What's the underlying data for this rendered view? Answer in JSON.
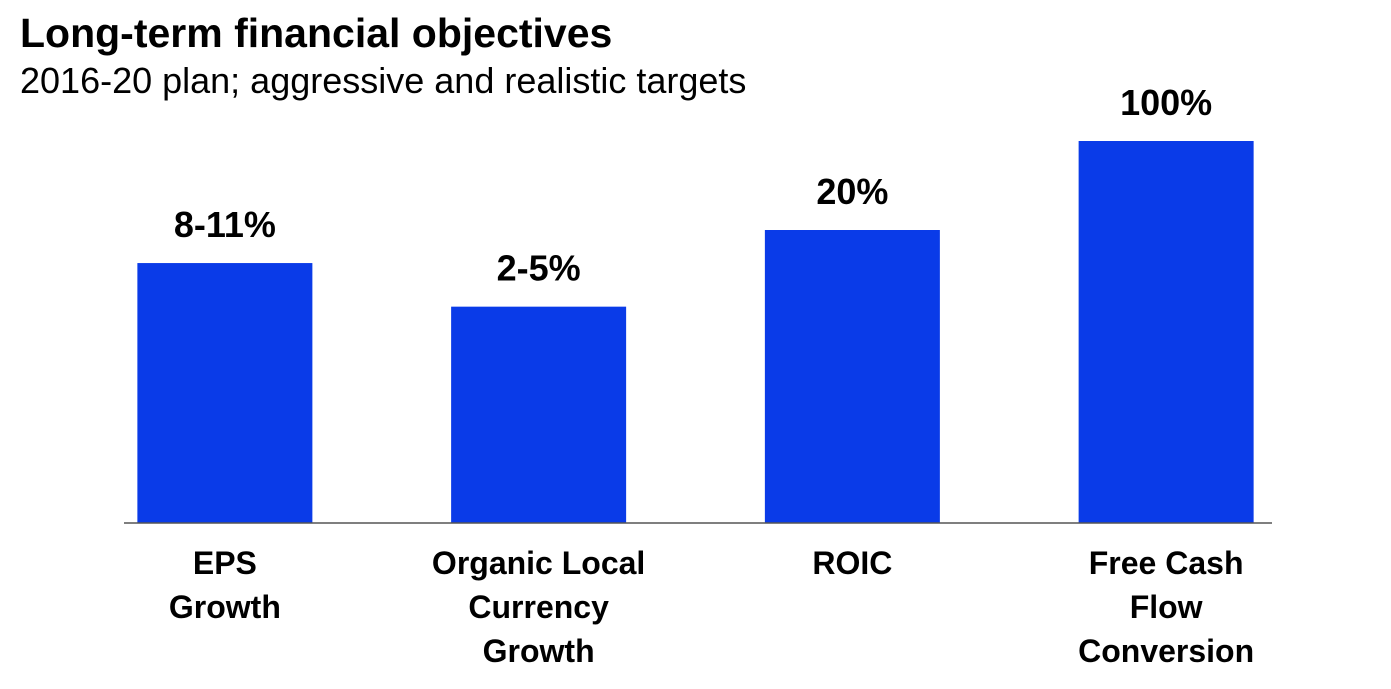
{
  "chart_data": {
    "type": "bar",
    "title": "Long-term financial objectives",
    "subtitle": "2016-20 plan; aggressive and realistic targets",
    "categories": [
      "EPS\nGrowth",
      "Organic Local\nCurrency\nGrowth",
      "ROIC",
      "Free Cash\nFlow\nConversion"
    ],
    "values": [
      11,
      5,
      20,
      100
    ],
    "value_labels": [
      "8-11%",
      "2-5%",
      "20%",
      "100%"
    ],
    "color": "#0a3be8",
    "log_scale": true,
    "ylim": [
      0.1,
      100
    ]
  }
}
